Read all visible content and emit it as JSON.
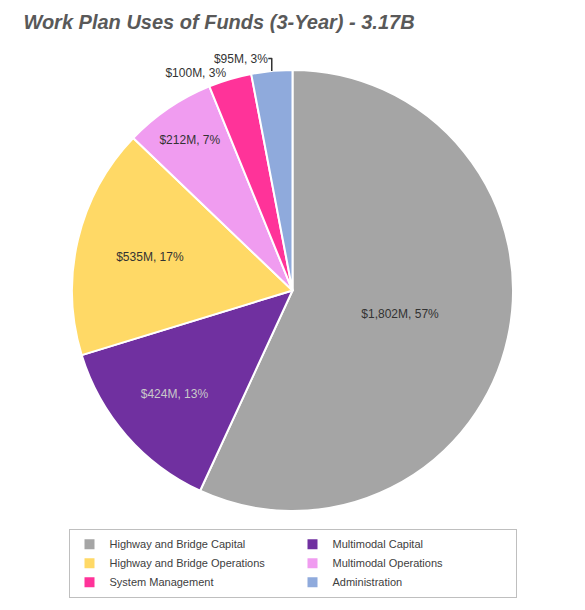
{
  "chart_data": {
    "type": "pie",
    "title": "Work Plan Uses of Funds (3-Year) - 3.17B",
    "categories": [
      "Highway and Bridge Capital",
      "Multimodal Capital",
      "Highway and Bridge Operations",
      "Multimodal Operations",
      "System Management",
      "Administration"
    ],
    "values": [
      1802,
      424,
      535,
      212,
      100,
      95
    ],
    "value_labels": [
      "$1,802M, 57%",
      "$424M, 13%",
      "$535M, 17%",
      "$212M, 7%",
      "$100M, 3%",
      "$95M, 3%"
    ],
    "colors": [
      "#a5a5a5",
      "#7030a0",
      "#ffd966",
      "#f09cf0",
      "#ff3399",
      "#8faadc"
    ],
    "data_labels": true,
    "legend": "bottom"
  }
}
